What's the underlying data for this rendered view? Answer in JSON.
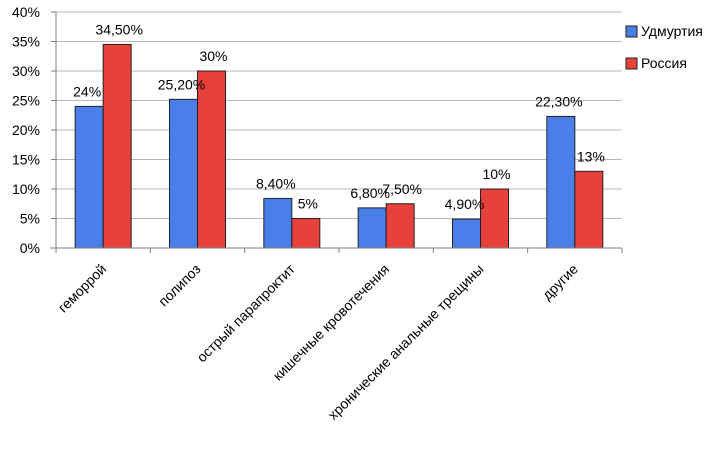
{
  "chart_data": {
    "type": "bar",
    "title": "",
    "xlabel": "",
    "ylabel": "",
    "ylim": [
      0,
      40
    ],
    "yticks": [
      "0%",
      "5%",
      "10%",
      "15%",
      "20%",
      "25%",
      "30%",
      "35%",
      "40%"
    ],
    "grid": true,
    "legend_position": "right",
    "categories": [
      "геморрой",
      "полипоз",
      "острый парапроктит",
      "кишечные кровотечения",
      "хронические анальные трещины",
      "другие"
    ],
    "series": [
      {
        "name": "Удмуртия",
        "color": "#4a7ee8",
        "values": [
          24,
          25.2,
          8.4,
          6.8,
          4.9,
          22.3
        ],
        "labels": [
          "24%",
          "25,20%",
          "8,40%",
          "6,80%",
          "4,90%",
          "22,30%"
        ]
      },
      {
        "name": "Россия",
        "color": "#e8403a",
        "values": [
          34.5,
          30,
          5,
          7.5,
          10,
          13
        ],
        "labels": [
          "34,50%",
          "30%",
          "5%",
          "7,50%",
          "10%",
          "13%"
        ]
      }
    ]
  }
}
